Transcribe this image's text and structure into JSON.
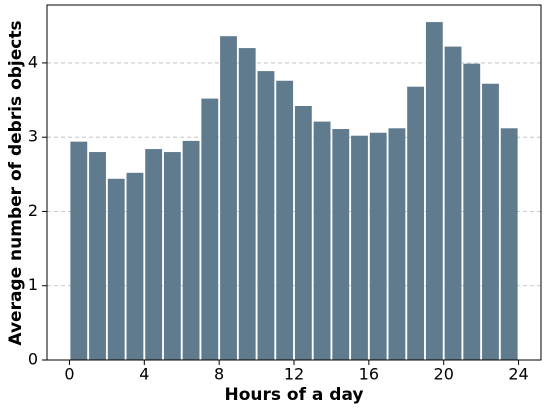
{
  "chart_data": {
    "type": "histogram",
    "xlabel": "Hours of a day",
    "ylabel": "Average number of debris objects",
    "bins": [
      0,
      1,
      2,
      3,
      4,
      5,
      6,
      7,
      8,
      9,
      10,
      11,
      12,
      13,
      14,
      15,
      16,
      17,
      18,
      19,
      20,
      21,
      22,
      23,
      24
    ],
    "counts": [
      2.94,
      2.8,
      2.44,
      2.52,
      2.84,
      2.8,
      2.95,
      3.52,
      4.36,
      4.2,
      3.89,
      3.76,
      3.42,
      3.21,
      3.11,
      3.02,
      3.06,
      3.12,
      3.68,
      4.55,
      4.22,
      3.99,
      3.72,
      3.12
    ],
    "color": "#607b8d",
    "xlim": [
      -1.2,
      25.2
    ],
    "xticks": [
      0,
      4,
      8,
      12,
      16,
      20,
      24
    ],
    "ylim": [
      0,
      4.78
    ],
    "yticks": [
      0,
      1,
      2,
      3,
      4
    ],
    "grid": true
  }
}
